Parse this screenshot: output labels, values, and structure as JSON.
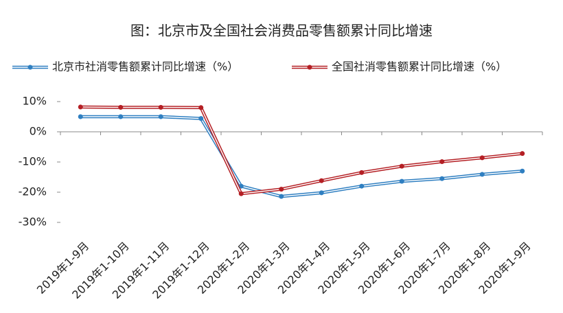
{
  "chart_data": {
    "type": "line",
    "title": "图：北京市及全国社会消费品零售额累计同比增速",
    "categories": [
      "2019年1-9月",
      "2019年1-10月",
      "2019年1-11月",
      "2019年1-12月",
      "2020年1-2月",
      "2020年1-3月",
      "2020年1-4月",
      "2020年1-5月",
      "2020年1-6月",
      "2020年1-7月",
      "2020年1-8月",
      "2020年1-9月"
    ],
    "series": [
      {
        "name": "北京市社消零售额累计同比增速（%）",
        "color": "#2f7fc1",
        "values": [
          5.0,
          5.0,
          5.0,
          4.4,
          -18.0,
          -21.4,
          -20.2,
          -18.0,
          -16.4,
          -15.5,
          -14.1,
          -13.0
        ]
      },
      {
        "name": "全国社消零售额累计同比增速（%）",
        "color": "#b41f24",
        "values": [
          8.2,
          8.1,
          8.1,
          8.0,
          -20.5,
          -19.0,
          -16.2,
          -13.5,
          -11.4,
          -9.9,
          -8.6,
          -7.2
        ]
      }
    ],
    "ylim": [
      -30,
      10
    ],
    "yticks": [
      {
        "value": -30,
        "label": "-30%"
      },
      {
        "value": -20,
        "label": "-20%"
      },
      {
        "value": -10,
        "label": "-10%"
      },
      {
        "value": 0,
        "label": "0%"
      },
      {
        "value": 10,
        "label": "10%"
      }
    ]
  }
}
